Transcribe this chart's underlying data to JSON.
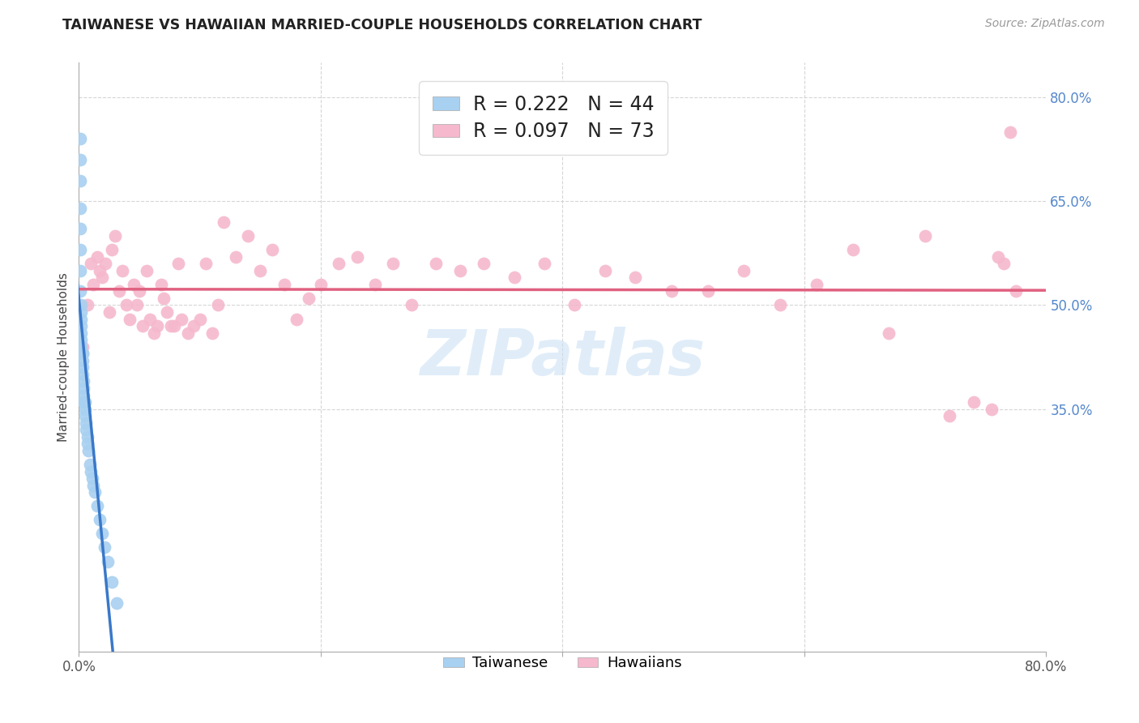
{
  "title": "TAIWANESE VS HAWAIIAN MARRIED-COUPLE HOUSEHOLDS CORRELATION CHART",
  "source": "Source: ZipAtlas.com",
  "ylabel": "Married-couple Households",
  "xlim": [
    0,
    0.8
  ],
  "ylim": [
    0,
    0.85
  ],
  "ytick_right_values": [
    0.8,
    0.65,
    0.5,
    0.35
  ],
  "grid_color": "#cccccc",
  "watermark_text": "ZIPatlas",
  "legend_line1": "R = 0.222   N = 44",
  "legend_line2": "R = 0.097   N = 73",
  "color_taiwanese": "#a8d0f0",
  "color_hawaiians": "#f5b8cc",
  "color_trend_taiwanese": "#3a78c9",
  "color_trend_hawaiians": "#e06080",
  "taiwanese_x": [
    0.001,
    0.001,
    0.001,
    0.001,
    0.001,
    0.001,
    0.001,
    0.001,
    0.002,
    0.002,
    0.002,
    0.002,
    0.002,
    0.002,
    0.002,
    0.003,
    0.003,
    0.003,
    0.003,
    0.003,
    0.004,
    0.004,
    0.004,
    0.004,
    0.005,
    0.005,
    0.005,
    0.006,
    0.006,
    0.007,
    0.007,
    0.008,
    0.009,
    0.01,
    0.011,
    0.012,
    0.013,
    0.015,
    0.017,
    0.019,
    0.021,
    0.024,
    0.027,
    0.031
  ],
  "taiwanese_y": [
    0.74,
    0.71,
    0.68,
    0.64,
    0.61,
    0.58,
    0.55,
    0.52,
    0.5,
    0.49,
    0.48,
    0.47,
    0.46,
    0.45,
    0.44,
    0.43,
    0.43,
    0.42,
    0.41,
    0.4,
    0.39,
    0.38,
    0.37,
    0.36,
    0.36,
    0.35,
    0.34,
    0.33,
    0.32,
    0.31,
    0.3,
    0.29,
    0.27,
    0.26,
    0.25,
    0.24,
    0.23,
    0.21,
    0.19,
    0.17,
    0.15,
    0.13,
    0.1,
    0.07
  ],
  "hawaiians_x": [
    0.003,
    0.007,
    0.01,
    0.012,
    0.015,
    0.017,
    0.019,
    0.022,
    0.025,
    0.027,
    0.03,
    0.033,
    0.036,
    0.039,
    0.042,
    0.045,
    0.048,
    0.05,
    0.053,
    0.056,
    0.059,
    0.062,
    0.065,
    0.068,
    0.07,
    0.073,
    0.076,
    0.079,
    0.082,
    0.085,
    0.09,
    0.095,
    0.1,
    0.105,
    0.11,
    0.115,
    0.12,
    0.13,
    0.14,
    0.15,
    0.16,
    0.17,
    0.18,
    0.19,
    0.2,
    0.215,
    0.23,
    0.245,
    0.26,
    0.275,
    0.295,
    0.315,
    0.335,
    0.36,
    0.385,
    0.41,
    0.435,
    0.46,
    0.49,
    0.52,
    0.55,
    0.58,
    0.61,
    0.64,
    0.67,
    0.7,
    0.72,
    0.74,
    0.755,
    0.76,
    0.765,
    0.77,
    0.775
  ],
  "hawaiians_y": [
    0.44,
    0.5,
    0.56,
    0.53,
    0.57,
    0.55,
    0.54,
    0.56,
    0.49,
    0.58,
    0.6,
    0.52,
    0.55,
    0.5,
    0.48,
    0.53,
    0.5,
    0.52,
    0.47,
    0.55,
    0.48,
    0.46,
    0.47,
    0.53,
    0.51,
    0.49,
    0.47,
    0.47,
    0.56,
    0.48,
    0.46,
    0.47,
    0.48,
    0.56,
    0.46,
    0.5,
    0.62,
    0.57,
    0.6,
    0.55,
    0.58,
    0.53,
    0.48,
    0.51,
    0.53,
    0.56,
    0.57,
    0.53,
    0.56,
    0.5,
    0.56,
    0.55,
    0.56,
    0.54,
    0.56,
    0.5,
    0.55,
    0.54,
    0.52,
    0.52,
    0.55,
    0.5,
    0.53,
    0.58,
    0.46,
    0.6,
    0.34,
    0.36,
    0.35,
    0.57,
    0.56,
    0.75,
    0.52
  ]
}
